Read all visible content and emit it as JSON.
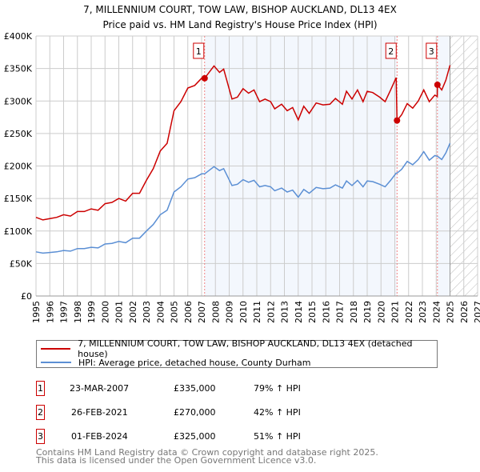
{
  "chart_data": {
    "type": "line",
    "title": "7, MILLENNIUM COURT, TOW LAW, BISHOP AUCKLAND, DL13 4EX",
    "subtitle": "Price paid vs. HM Land Registry's House Price Index (HPI)",
    "xlim": [
      1995,
      2027
    ],
    "ylim": [
      0,
      400000
    ],
    "grid": true,
    "x_ticks": [
      "1995",
      "1996",
      "1997",
      "1998",
      "1999",
      "2000",
      "2001",
      "2002",
      "2003",
      "2004",
      "2005",
      "2006",
      "2007",
      "2008",
      "2009",
      "2010",
      "2011",
      "2012",
      "2013",
      "2014",
      "2015",
      "2016",
      "2017",
      "2018",
      "2019",
      "2020",
      "2021",
      "2022",
      "2023",
      "2024",
      "2025",
      "2026",
      "2027"
    ],
    "y_ticks": [
      {
        "v": 0,
        "label": "£0"
      },
      {
        "v": 50000,
        "label": "£50K"
      },
      {
        "v": 100000,
        "label": "£100K"
      },
      {
        "v": 150000,
        "label": "£150K"
      },
      {
        "v": 200000,
        "label": "£200K"
      },
      {
        "v": 250000,
        "label": "£250K"
      },
      {
        "v": 300000,
        "label": "£300K"
      },
      {
        "v": 350000,
        "label": "£350K"
      },
      {
        "v": 400000,
        "label": "£400K"
      }
    ],
    "forecast_start": 2025,
    "x": [
      1995,
      1995.5,
      1996,
      1996.5,
      1997,
      1997.5,
      1998,
      1998.5,
      1999,
      1999.5,
      2000,
      2000.5,
      2001,
      2001.5,
      2002,
      2002.5,
      2003,
      2003.5,
      2004,
      2004.5,
      2005,
      2005.5,
      2006,
      2006.5,
      2007,
      2007.22,
      2007.9,
      2008.3,
      2008.6,
      2009.2,
      2009.6,
      2010,
      2010.4,
      2010.8,
      2011.2,
      2011.6,
      2012,
      2012.3,
      2012.8,
      2013.2,
      2013.6,
      2014.0,
      2014.4,
      2014.8,
      2015.3,
      2015.8,
      2016.3,
      2016.7,
      2017.2,
      2017.5,
      2017.9,
      2018.3,
      2018.7,
      2019.0,
      2019.4,
      2019.9,
      2020.3,
      2020.7,
      2021.1,
      2021.16,
      2021.5,
      2021.9,
      2022.3,
      2022.7,
      2023.1,
      2023.5,
      2023.9,
      2024.08,
      2024.09,
      2024.4,
      2024.7,
      2025.0
    ],
    "series": [
      {
        "name": "7, MILLENNIUM COURT, TOW LAW, BISHOP AUCKLAND, DL13 4EX (detached house)",
        "color": "#cc0000",
        "values": [
          121,
          117,
          119,
          121,
          125,
          123,
          130,
          130,
          134,
          132,
          142,
          144,
          150,
          146,
          158,
          158,
          178,
          196,
          223,
          235,
          285,
          299,
          320,
          324,
          335,
          335,
          354,
          344,
          349,
          303,
          306,
          319,
          312,
          317,
          299,
          303,
          299,
          288,
          295,
          285,
          290,
          271,
          292,
          281,
          297,
          294,
          295,
          304,
          295,
          315,
          303,
          317,
          299,
          315,
          313,
          306,
          299,
          317,
          336,
          270,
          279,
          296,
          289,
          300,
          317,
          299,
          309,
          307,
          325,
          317,
          332,
          355
        ],
        "unit": "thousand GBP"
      },
      {
        "name": "HPI: Average price, detached house, County Durham",
        "color": "#5b8fd4",
        "values": [
          68,
          66,
          67,
          68,
          70,
          69,
          73,
          73,
          75,
          74,
          80,
          81,
          84,
          82,
          89,
          89,
          100,
          110,
          125,
          132,
          160,
          168,
          180,
          182,
          188,
          188,
          199,
          193,
          196,
          170,
          172,
          179,
          175,
          178,
          168,
          170,
          168,
          162,
          166,
          160,
          163,
          152,
          164,
          158,
          167,
          165,
          166,
          171,
          166,
          177,
          170,
          178,
          168,
          177,
          176,
          172,
          168,
          178,
          189,
          189,
          195,
          207,
          202,
          210,
          222,
          209,
          216,
          215,
          215,
          210,
          220,
          235
        ],
        "unit": "thousand GBP"
      }
    ],
    "sales": [
      {
        "id": "1",
        "x": 2007.22,
        "price": 335000,
        "date": "23-MAR-2007",
        "price_label": "£335,000",
        "hpi_label": "79% ↑ HPI"
      },
      {
        "id": "2",
        "x": 2021.16,
        "price": 270000,
        "date": "26-FEB-2021",
        "price_label": "£270,000",
        "hpi_label": "42% ↑ HPI"
      },
      {
        "id": "3",
        "x": 2024.09,
        "price": 325000,
        "date": "01-FEB-2024",
        "price_label": "£325,000",
        "hpi_label": "51% ↑ HPI"
      }
    ],
    "legend_position": "below"
  },
  "footer": {
    "line1": "Contains HM Land Registry data © Crown copyright and database right 2025.",
    "line2": "This data is licensed under the Open Government Licence v3.0."
  }
}
